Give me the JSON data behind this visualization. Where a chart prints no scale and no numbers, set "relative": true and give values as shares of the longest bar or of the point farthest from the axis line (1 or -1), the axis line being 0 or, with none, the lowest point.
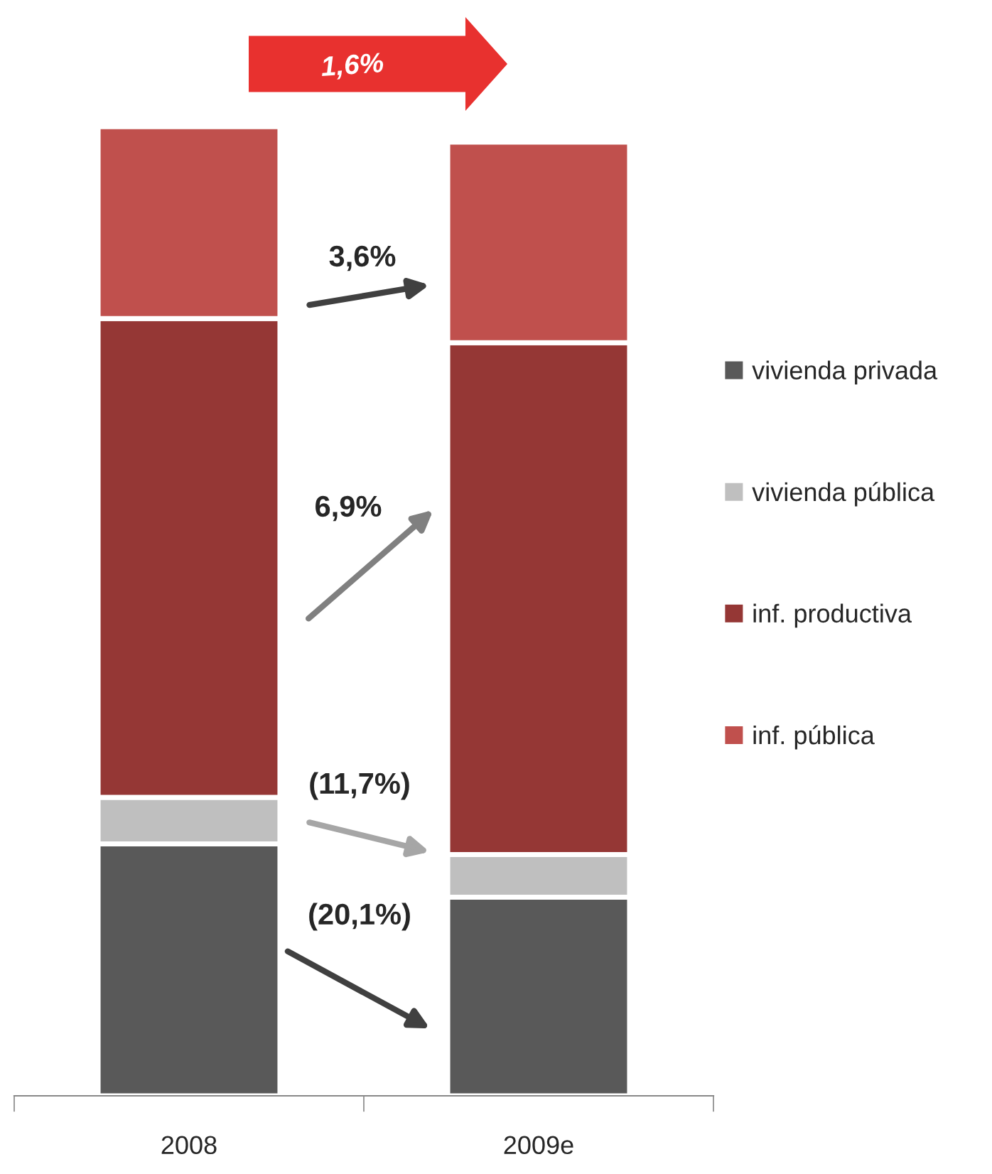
{
  "chart_data": {
    "type": "bar",
    "stacked": true,
    "relative": true,
    "legend": "right",
    "marker": "square",
    "categories": [
      "2008",
      "2009e"
    ],
    "series": [
      {
        "name": "vivienda privada",
        "color": "#595959",
        "values": [
          0.26,
          0.205
        ]
      },
      {
        "name": "vivienda pública",
        "color": "#bfbfbf",
        "values": [
          0.048,
          0.044
        ]
      },
      {
        "name": "inf. productiva",
        "color": "#953735",
        "values": [
          0.494,
          0.528
        ]
      },
      {
        "name": "inf. pública",
        "color": "#c0504d",
        "values": [
          0.198,
          0.207
        ]
      }
    ],
    "annotations": [
      "1,6%",
      "3,6%",
      "6,9%",
      "(11,7%)",
      "(20,1%)"
    ]
  }
}
